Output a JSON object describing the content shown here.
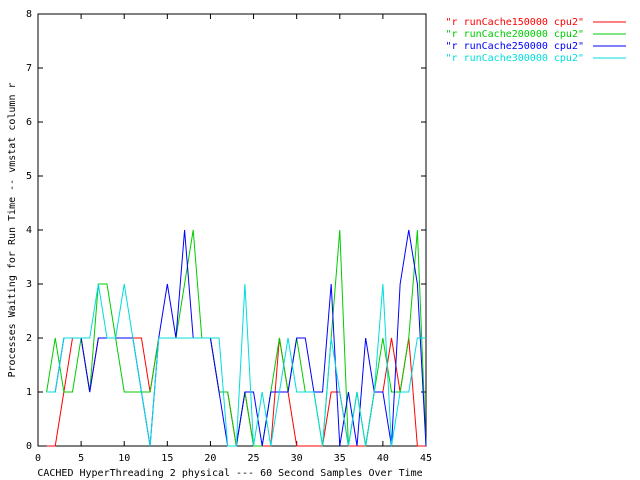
{
  "chart_data": {
    "type": "line",
    "xlabel": "CACHED HyperThreading 2 physical --- 60 Second Samples Over Time",
    "ylabel": "Processes Waiting for Run Time -- vmstat column r",
    "xlim": [
      0,
      45
    ],
    "xticks": [
      0,
      5,
      10,
      15,
      20,
      25,
      30,
      35,
      40,
      45
    ],
    "ylim": [
      0,
      8
    ],
    "yticks": [
      0,
      1,
      2,
      3,
      4,
      5,
      6,
      7,
      8
    ],
    "legend": "top-right",
    "x": [
      1,
      2,
      3,
      4,
      5,
      6,
      7,
      8,
      9,
      10,
      11,
      12,
      13,
      14,
      15,
      16,
      17,
      18,
      19,
      20,
      21,
      22,
      23,
      24,
      25,
      26,
      27,
      28,
      29,
      30,
      31,
      32,
      33,
      34,
      35,
      36,
      37,
      38,
      39,
      40,
      41,
      42,
      43,
      44,
      45
    ],
    "series": [
      {
        "name": "\"r runCache150000 cpu2\"",
        "color": "#ff0000",
        "values": [
          0,
          0,
          1,
          2,
          2,
          1,
          2,
          2,
          2,
          2,
          2,
          2,
          1,
          2,
          2,
          2,
          2,
          2,
          2,
          2,
          1,
          1,
          0,
          1,
          0,
          0,
          0,
          2,
          1,
          0,
          0,
          0,
          0,
          1,
          1,
          0,
          0,
          0,
          1,
          1,
          2,
          1,
          2,
          0,
          0
        ]
      },
      {
        "name": "\"r runCache200000 cpu2\"",
        "color": "#00cc00",
        "values": [
          1,
          2,
          1,
          1,
          2,
          1,
          3,
          3,
          2,
          1,
          1,
          1,
          1,
          2,
          2,
          2,
          3,
          4,
          2,
          2,
          1,
          1,
          0,
          1,
          0,
          0,
          1,
          2,
          1,
          2,
          1,
          1,
          0,
          2,
          4,
          0,
          1,
          0,
          1,
          2,
          1,
          1,
          2,
          4,
          0
        ]
      },
      {
        "name": "\"r runCache250000 cpu2\"",
        "color": "#0000ff",
        "values": [
          1,
          1,
          2,
          2,
          2,
          1,
          2,
          2,
          2,
          2,
          2,
          1,
          0,
          2,
          3,
          2,
          4,
          2,
          2,
          2,
          1,
          0,
          0,
          1,
          1,
          0,
          1,
          1,
          1,
          2,
          2,
          1,
          1,
          3,
          0,
          1,
          0,
          2,
          1,
          1,
          0,
          3,
          4,
          3,
          0
        ]
      },
      {
        "name": "\"r runCache300000 cpu2\"",
        "color": "#00dddd",
        "values": [
          1,
          1,
          2,
          2,
          2,
          2,
          3,
          2,
          2,
          3,
          2,
          1,
          0,
          2,
          2,
          2,
          2,
          2,
          2,
          2,
          2,
          0,
          0,
          3,
          0,
          1,
          0,
          1,
          2,
          1,
          1,
          1,
          0,
          2,
          1,
          0,
          1,
          0,
          1,
          3,
          0,
          1,
          1,
          2,
          2
        ]
      }
    ]
  }
}
